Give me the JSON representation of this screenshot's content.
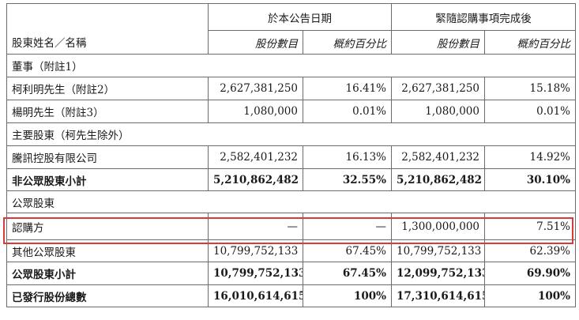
{
  "header": {
    "group1": "於本公告日期",
    "group2": "緊隨認購事項完成後",
    "name_col": "股東姓名／名稱",
    "shares": "股份數目",
    "pct": "概約百分比"
  },
  "rows": [
    {
      "type": "section",
      "name": "董事（附註1）"
    },
    {
      "type": "data",
      "name": "柯利明先生（附註2）",
      "s1": "2,627,381,250",
      "p1": "16.41%",
      "s2": "2,627,381,250",
      "p2": "15.18%"
    },
    {
      "type": "data",
      "name": "楊明先生（附註3）",
      "s1": "1,080,000",
      "p1": "0.01%",
      "s2": "1,080,000",
      "p2": "0.01%"
    },
    {
      "type": "section",
      "name": "主要股東（柯先生除外）"
    },
    {
      "type": "data",
      "name": "騰訊控股有限公司",
      "s1": "2,582,401,232",
      "p1": "16.13%",
      "s2": "2,582,401,232",
      "p2": "14.92%"
    },
    {
      "type": "total",
      "name": "非公眾股東小計",
      "s1": "5,210,862,482",
      "p1": "32.55%",
      "s2": "5,210,862,482",
      "p2": "30.10%"
    },
    {
      "type": "section",
      "name": "公眾股東"
    },
    {
      "type": "data",
      "name": "認購方",
      "s1": "—",
      "p1": "—",
      "s2": "1,300,000,000",
      "p2": "7.51%"
    },
    {
      "type": "data",
      "name": "其他公眾股東",
      "s1": "10,799,752,133",
      "p1": "67.45%",
      "s2": "10,799,752,133",
      "p2": "62.39%"
    },
    {
      "type": "total",
      "name": "公眾股東小計",
      "s1": "10,799,752,133",
      "p1": "67.45%",
      "s2": "12,099,752,133",
      "p2": "69.90%"
    },
    {
      "type": "total",
      "name": "已發行股份總數",
      "s1": "16,010,614,615",
      "p1": "100%",
      "s2": "17,310,614,615",
      "p2": "100%"
    }
  ],
  "highlight_color": "#d63c3c"
}
